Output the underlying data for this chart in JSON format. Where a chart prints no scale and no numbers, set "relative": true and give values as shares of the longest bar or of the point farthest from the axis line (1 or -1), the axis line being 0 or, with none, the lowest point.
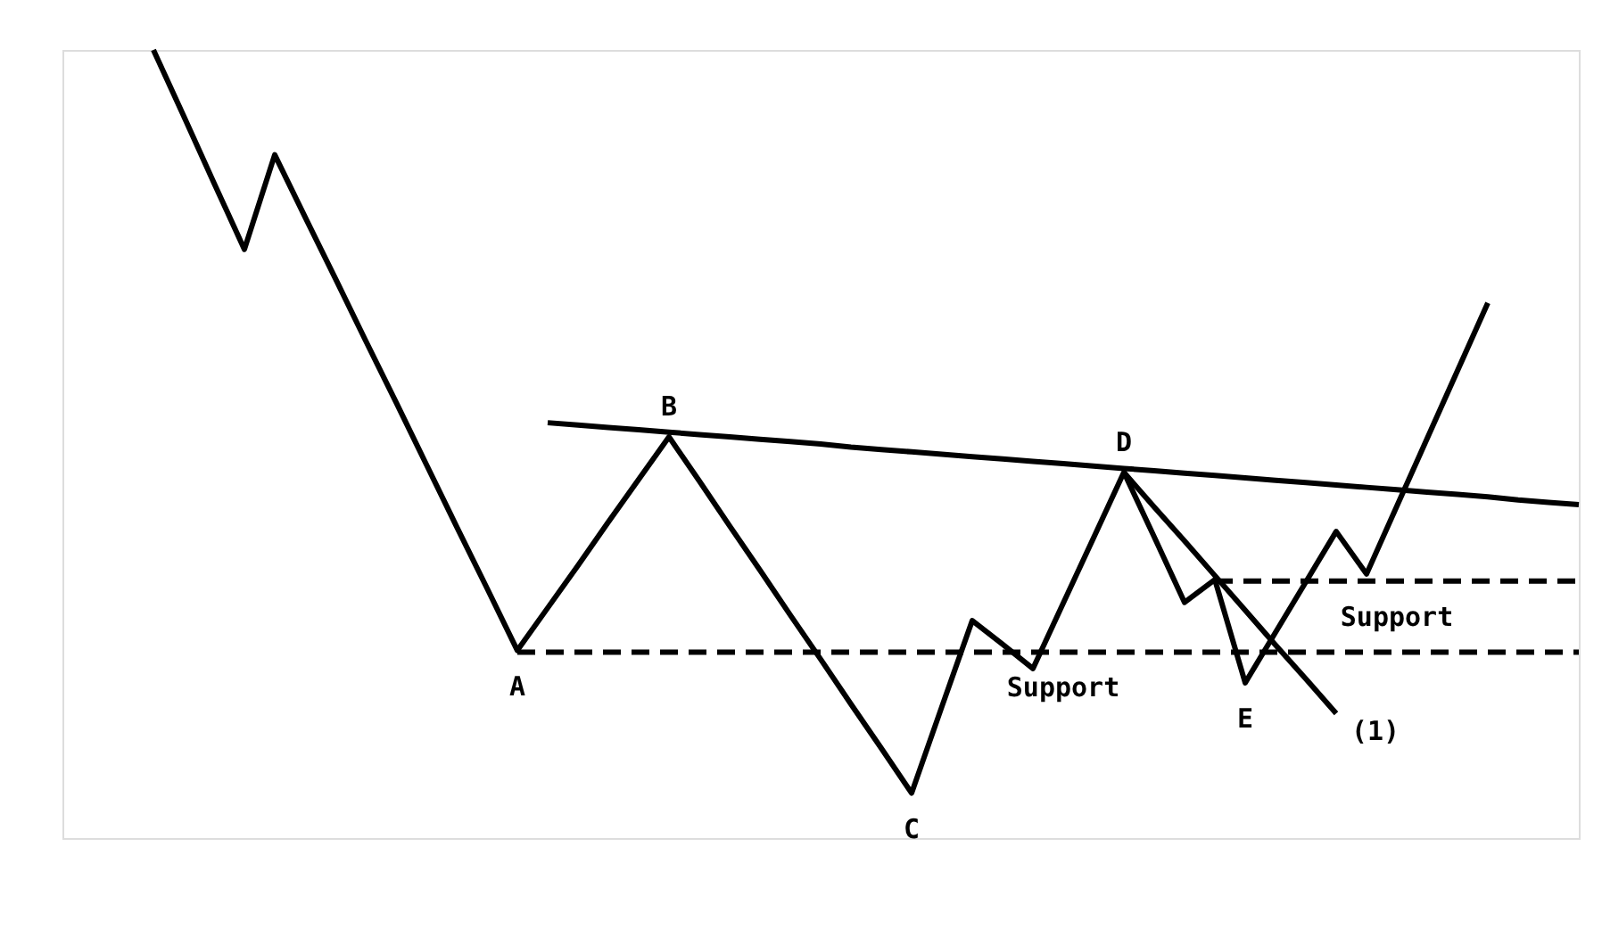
{
  "chart_data": {
    "type": "line",
    "relative": true,
    "marker": "none",
    "categories": [
      null,
      null,
      null,
      null,
      null,
      null,
      null,
      null,
      null,
      null,
      null,
      null,
      null,
      null,
      null,
      null,
      null,
      null,
      null,
      null,
      null,
      null,
      null,
      null,
      null,
      null,
      null,
      null,
      null,
      null,
      null,
      null,
      null,
      null,
      null,
      null,
      null,
      null,
      null,
      null,
      null,
      null,
      null,
      null,
      null,
      null,
      null,
      null,
      null,
      null,
      null
    ],
    "series": [
      {
        "color": "#000000",
        "line_style": "solid",
        "values": [
          null,
          null,
          null,
          1.0,
          0.916,
          0.831,
          0.747,
          0.867,
          0.788,
          0.71,
          0.631,
          0.553,
          0.474,
          0.395,
          0.317,
          0.238,
          0.292,
          0.346,
          0.401,
          0.455,
          0.509,
          0.453,
          0.396,
          0.34,
          0.283,
          0.227,
          0.17,
          0.114,
          0.057,
          0.167,
          0.276,
          0.246,
          0.215,
          0.298,
          0.381,
          0.464,
          0.382,
          0.299,
          0.328,
          0.197,
          0.261,
          0.325,
          0.389,
          0.335,
          0.421,
          0.507,
          0.593,
          0.679,
          null,
          null,
          null
        ]
      },
      {
        "color": "#000000",
        "line_style": "solid",
        "values": [
          null,
          null,
          null,
          null,
          null,
          null,
          null,
          null,
          null,
          null,
          null,
          null,
          null,
          null,
          null,
          null,
          0.527,
          0.524,
          0.521,
          0.518,
          0.515,
          0.512,
          0.509,
          0.506,
          0.503,
          0.5,
          0.496,
          0.493,
          0.49,
          0.487,
          0.484,
          0.481,
          0.478,
          0.475,
          0.472,
          0.469,
          0.466,
          0.463,
          0.46,
          0.457,
          0.454,
          0.451,
          0.448,
          0.445,
          0.442,
          0.439,
          0.436,
          0.433,
          0.429,
          0.426,
          0.423
        ]
      },
      {
        "color": "#000000",
        "line_style": "dashed",
        "values": [
          null,
          null,
          null,
          null,
          null,
          null,
          null,
          null,
          null,
          null,
          null,
          null,
          null,
          null,
          null,
          0.236,
          0.236,
          0.236,
          0.236,
          0.236,
          0.236,
          0.236,
          0.236,
          0.236,
          0.236,
          0.236,
          0.236,
          0.236,
          0.236,
          0.236,
          0.236,
          0.236,
          0.236,
          0.236,
          0.236,
          0.236,
          0.236,
          0.236,
          0.236,
          0.236,
          0.236,
          0.236,
          0.236,
          0.236,
          0.236,
          0.236,
          0.236,
          0.236,
          0.236,
          0.236,
          0.236
        ]
      },
      {
        "color": "#000000",
        "line_style": "dashed",
        "values": [
          null,
          null,
          null,
          null,
          null,
          null,
          null,
          null,
          null,
          null,
          null,
          null,
          null,
          null,
          null,
          null,
          null,
          null,
          null,
          null,
          null,
          null,
          null,
          null,
          null,
          null,
          null,
          null,
          null,
          null,
          null,
          null,
          null,
          null,
          null,
          null,
          null,
          null,
          0.326,
          0.326,
          0.326,
          0.326,
          0.326,
          0.326,
          0.326,
          0.326,
          0.326,
          0.326,
          0.326,
          0.326,
          0.326
        ]
      },
      {
        "color": "#000000",
        "line_style": "solid",
        "values": [
          null,
          null,
          null,
          null,
          null,
          null,
          null,
          null,
          null,
          null,
          null,
          null,
          null,
          null,
          null,
          null,
          null,
          null,
          null,
          null,
          null,
          null,
          null,
          null,
          null,
          null,
          null,
          null,
          null,
          null,
          null,
          null,
          null,
          null,
          null,
          0.464,
          0.42,
          0.377,
          0.333,
          0.289,
          0.245,
          0.202,
          0.158,
          null,
          null,
          null,
          null,
          null,
          null,
          null,
          null
        ]
      }
    ],
    "annotations": [
      {
        "text": "A",
        "y": 0.238
      },
      {
        "text": "B",
        "y": 0.509
      },
      {
        "text": "C",
        "y": 0.057
      },
      {
        "text": "D",
        "y": 0.464
      },
      {
        "text": "E",
        "y": 0.197
      },
      {
        "text": "Support",
        "y": 0.236
      },
      {
        "text": "Support",
        "y": 0.326
      },
      "(1)"
    ]
  }
}
